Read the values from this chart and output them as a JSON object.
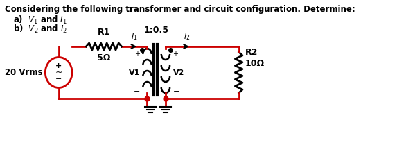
{
  "title_line1": "Considering the following transformer and circuit configuration. Determine:",
  "title_line2a": "a)  $V_1$ and $I_1$",
  "title_line2b": "b)  $V_2$ and $I_2$",
  "bg_color": "#ffffff",
  "wire_color": "#cc0000",
  "text_color": "#000000",
  "R1_label": "R1",
  "R1_val": "5Ω",
  "R2_label": "R2",
  "R2_val": "10Ω",
  "source_label": "20 Vrms",
  "ratio_label": "1:0.5",
  "V1_label": "V1",
  "V2_label": "V2",
  "I1_label": "$I_1$",
  "I2_label": "$I_2$"
}
